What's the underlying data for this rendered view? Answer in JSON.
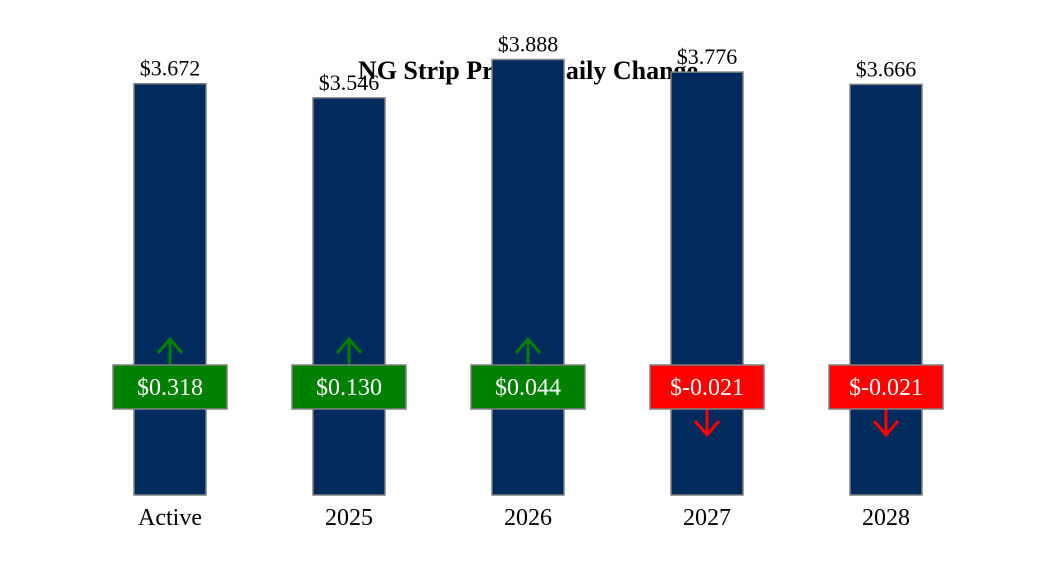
{
  "chart_data": {
    "type": "bar",
    "title": "NG Strip Prices, Daily Change",
    "categories": [
      "Active",
      "2025",
      "2026",
      "2027",
      "2028"
    ],
    "values": [
      3.672,
      3.546,
      3.888,
      3.776,
      3.666
    ],
    "value_labels": [
      "$3.672",
      "$3.546",
      "$3.888",
      "$3.776",
      "$3.666"
    ],
    "changes": [
      0.318,
      0.13,
      0.044,
      -0.021,
      -0.021
    ],
    "change_labels": [
      "$0.318",
      "$0.130",
      "$0.044",
      "$-0.021",
      "$-0.021"
    ],
    "ylim": [
      0,
      4
    ],
    "grid": false,
    "legend": "none",
    "colors": {
      "bar": "#002B5C",
      "bar_border": "#808080",
      "up": "#008000",
      "down": "#FF0000"
    }
  }
}
